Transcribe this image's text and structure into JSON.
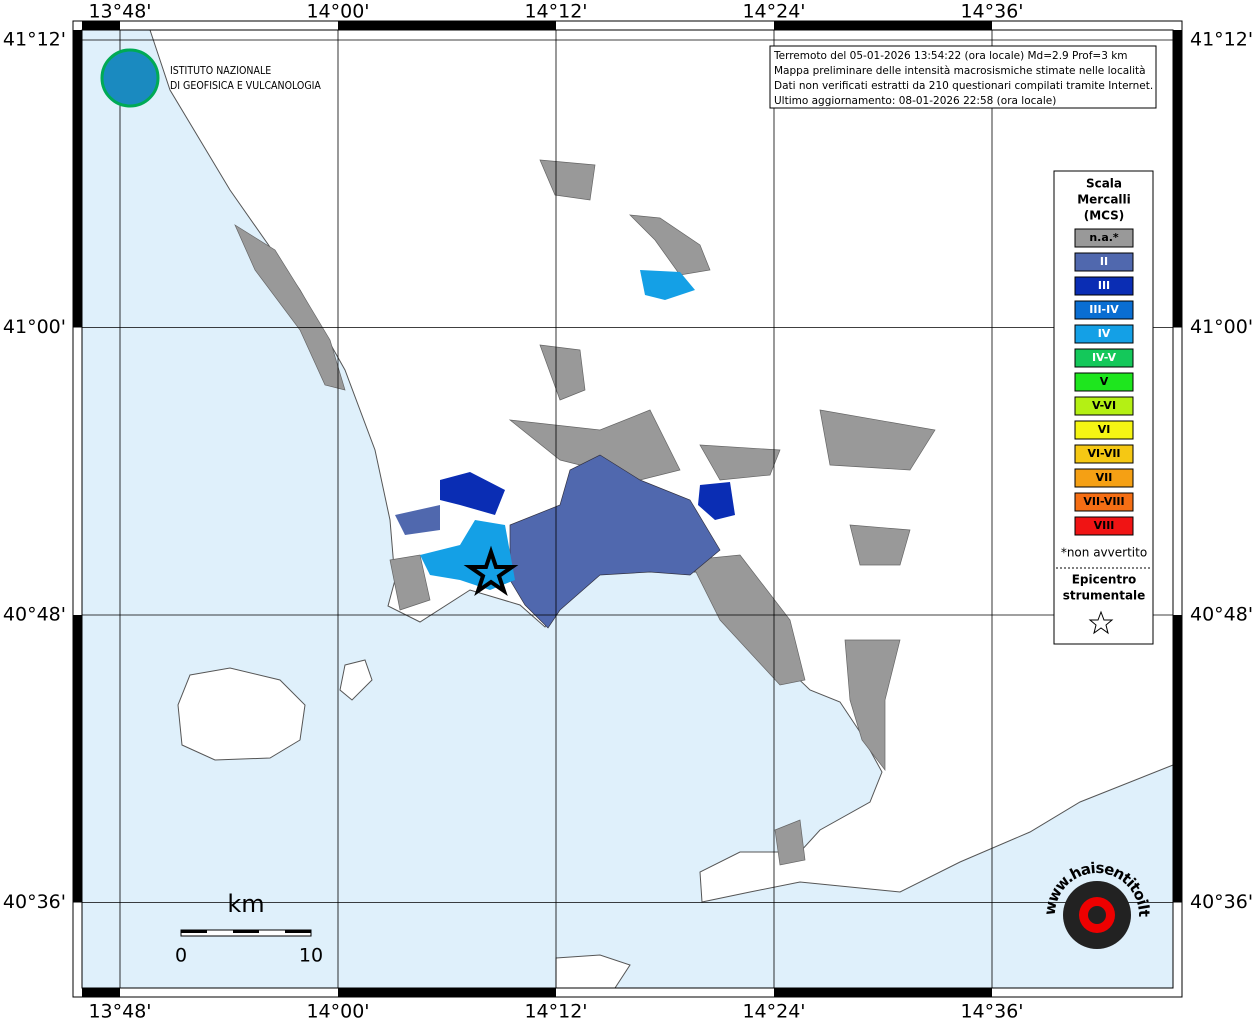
{
  "header": {
    "lines": [
      "Terremoto del 05-01-2026 13:54:22 (ora locale) Md=2.9 Prof=3 km",
      "Mappa preliminare delle intensità macrosismiche stimate nelle località",
      "Dati non verificati estratti da 210 questionari compilati tramite Internet.",
      "Ultimo aggiornamento: 08-01-2026 22:58 (ora locale)"
    ]
  },
  "logo": {
    "line1": "ISTITUTO NAZIONALE",
    "line2": "DI GEOFISICA E VULCANOLOGIA"
  },
  "axes": {
    "lon_labels": [
      "13°48'",
      "14°00'",
      "14°12'",
      "14°24'",
      "14°36'"
    ],
    "lat_labels": [
      "41°12'",
      "41°00'",
      "40°48'",
      "40°36'"
    ]
  },
  "legend": {
    "title_lines": [
      "Scala",
      "Mercalli",
      "(MCS)"
    ],
    "items": [
      {
        "label": "n.a.*",
        "color": "#999999"
      },
      {
        "label": "II",
        "color": "#5068ae"
      },
      {
        "label": "III",
        "color": "#0a2db4"
      },
      {
        "label": "III-IV",
        "color": "#0a6ed2"
      },
      {
        "label": "IV",
        "color": "#14a0e6"
      },
      {
        "label": "IV-V",
        "color": "#14c85a"
      },
      {
        "label": "V",
        "color": "#1ee61e"
      },
      {
        "label": "V-VI",
        "color": "#b4f014"
      },
      {
        "label": "VI",
        "color": "#f5f514"
      },
      {
        "label": "VI-VII",
        "color": "#f5c814"
      },
      {
        "label": "VII",
        "color": "#f5a014"
      },
      {
        "label": "VII-VIII",
        "color": "#f56e14"
      },
      {
        "label": "VIII",
        "color": "#f01414"
      }
    ],
    "note": "*non avvertito",
    "epicenter_lines": [
      "Epicentro",
      "strumentale"
    ]
  },
  "scale_bar": {
    "unit": "km",
    "start": "0",
    "end": "10"
  },
  "site_logo": {
    "text": "www.haisentitoilterremoto.it"
  }
}
